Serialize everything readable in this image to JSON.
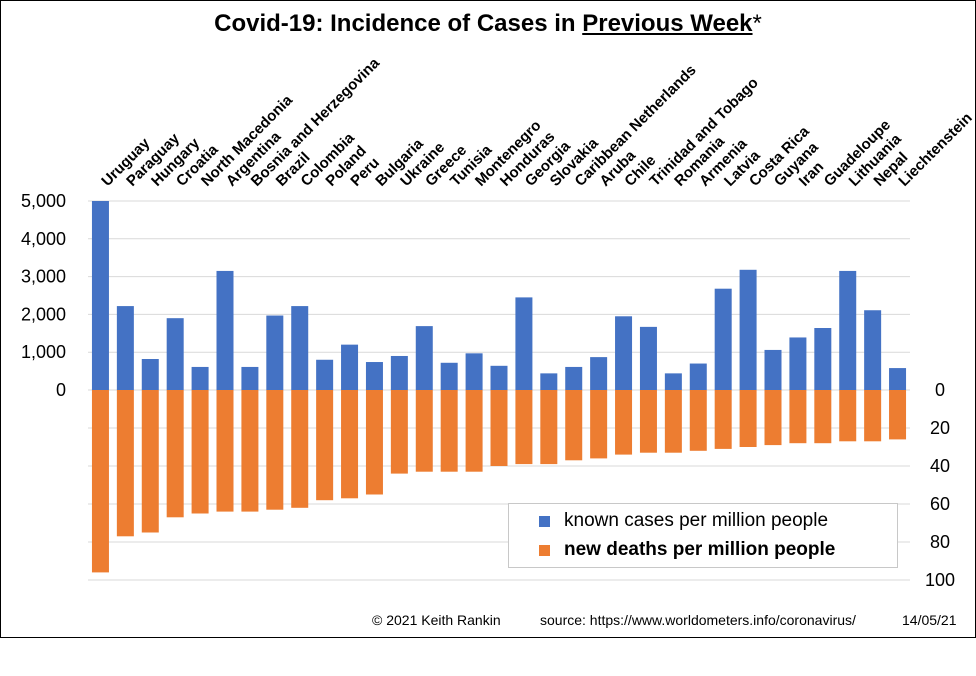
{
  "title": {
    "prefix": "Covid-19: Incidence of Cases in ",
    "underlined": "Previous Week",
    "suffix": "*"
  },
  "footer": {
    "copyright": "© 2021  Keith Rankin",
    "source": "source:  https://www.worldometers.info/coronavirus/",
    "date": "14/05/21"
  },
  "colors": {
    "cases": "#4472C4",
    "deaths": "#ED7D31",
    "grid": "#D9D9D9"
  },
  "chart_data": {
    "type": "bar",
    "categories": [
      "Uruguay",
      "Paraguay",
      "Hungary",
      "Croatia",
      "North Macedonia",
      "Argentina",
      "Bosnia and Herzegovina",
      "Brazil",
      "Colombia",
      "Poland",
      "Peru",
      "Bulgaria",
      "Ukraine",
      "Greece",
      "Tunisia",
      "Montenegro",
      "Honduras",
      "Georgia",
      "Slovakia",
      "Caribbean Netherlands",
      "Aruba",
      "Chile",
      "Trinidad and Tobago",
      "Romania",
      "Armenia",
      "Latvia",
      "Costa Rica",
      "Guyana",
      "Iran",
      "Guadeloupe",
      "Lithuania",
      "Nepal",
      "Liechtenstein"
    ],
    "series": [
      {
        "name": "known cases per million people",
        "axis": "left",
        "values": [
          5000,
          2220,
          820,
          1900,
          610,
          3150,
          610,
          1970,
          2220,
          800,
          1200,
          740,
          900,
          1690,
          720,
          970,
          640,
          2450,
          440,
          610,
          870,
          1950,
          1670,
          440,
          700,
          2680,
          3180,
          1060,
          1390,
          1640,
          3150,
          2110,
          580
        ]
      },
      {
        "name": "new deaths per million people",
        "axis": "right",
        "direction": "down",
        "values": [
          96,
          77,
          75,
          67,
          65,
          64,
          64,
          63,
          62,
          58,
          57,
          55,
          44,
          43,
          43,
          43,
          40,
          39,
          39,
          37,
          36,
          34,
          33,
          33,
          32,
          31,
          30,
          29,
          28,
          28,
          27,
          27,
          26
        ]
      }
    ],
    "left_axis": {
      "ticks": [
        "5,000",
        "4,000",
        "3,000",
        "2,000",
        "1,000",
        "0"
      ],
      "range": [
        0,
        5000
      ]
    },
    "right_axis": {
      "ticks": [
        "0",
        "20",
        "40",
        "60",
        "80",
        "100"
      ],
      "range": [
        0,
        100
      ]
    },
    "legend_position": "bottom-right"
  }
}
